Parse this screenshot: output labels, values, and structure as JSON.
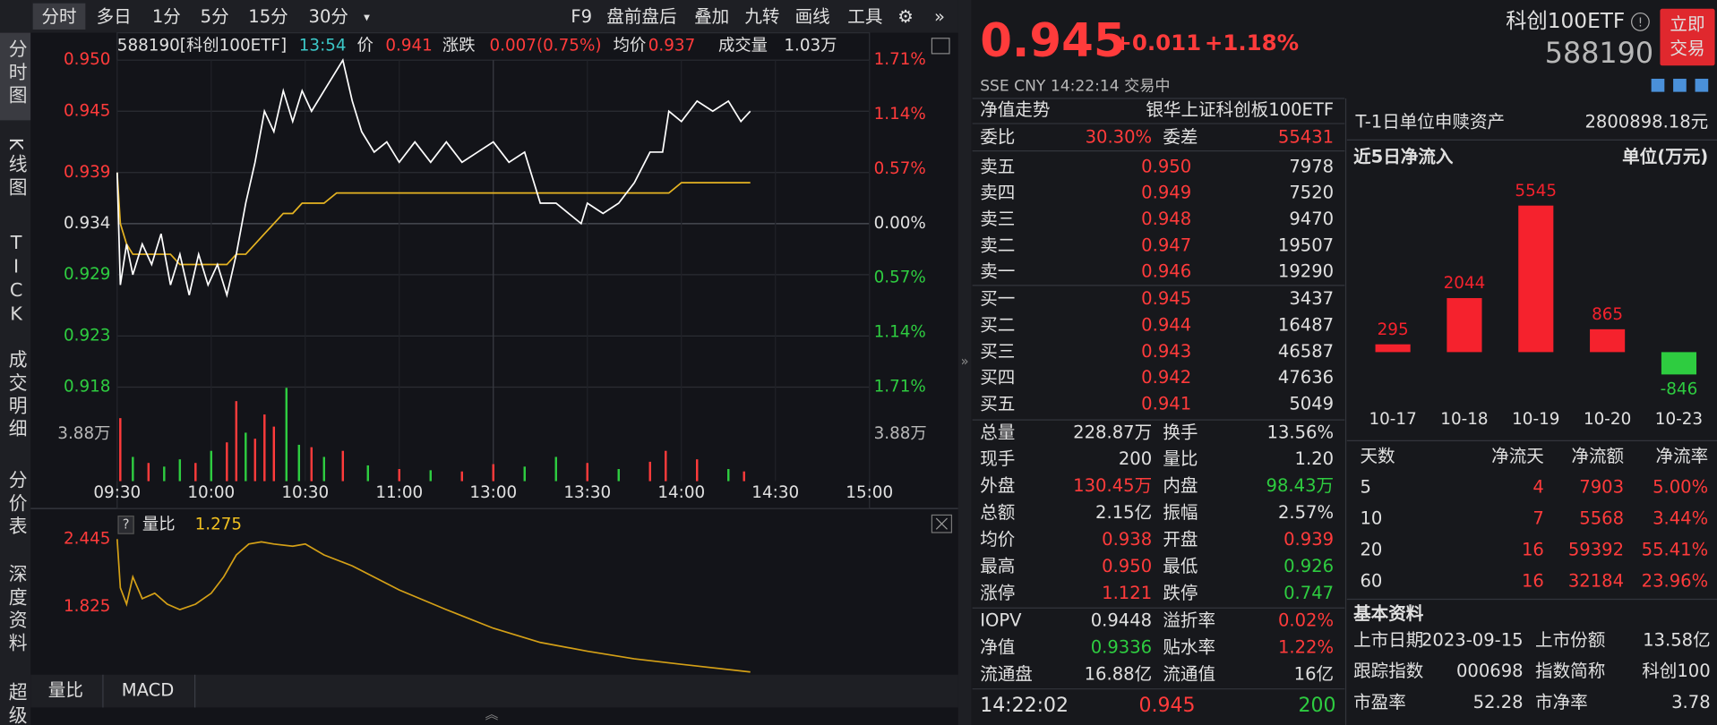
{
  "toolbar": {
    "tabs": [
      "分时",
      "多日",
      "1分",
      "5分",
      "15分",
      "30分"
    ],
    "tools": [
      "F9",
      "盘前盘后",
      "叠加",
      "九转",
      "画线",
      "工具"
    ]
  },
  "sidebar": [
    "分时图",
    "K线图",
    "TICK",
    "成交明细",
    "分价表",
    "深度资料",
    "超级"
  ],
  "info": {
    "code": "588190[科创100ETF]",
    "time": "13:54",
    "price": "0.941",
    "change_label": "涨跌",
    "change": "0.007(0.75%)",
    "avg": "0.937",
    "vol_label": "成交量",
    "vol": "1.03万",
    "ratio_value": "1.275"
  },
  "bottom_tabs": [
    "量比",
    "MACD"
  ],
  "chart_data": [
    {
      "type": "line",
      "x": [
        "09:30",
        "09:31",
        "09:33",
        "09:35",
        "09:38",
        "09:41",
        "09:44",
        "09:47",
        "09:50",
        "09:53",
        "09:56",
        "09:59",
        "10:02",
        "10:05",
        "10:08",
        "10:11",
        "10:14",
        "10:17",
        "10:20",
        "10:23",
        "10:26",
        "10:29",
        "10:32",
        "10:36",
        "10:40",
        "10:42",
        "10:45",
        "10:48",
        "10:52",
        "10:56",
        "11:00",
        "11:05",
        "11:10",
        "11:15",
        "11:20",
        "11:25",
        "13:00",
        "13:05",
        "13:10",
        "13:15",
        "13:20",
        "13:28",
        "13:30",
        "13:35",
        "13:40",
        "13:45",
        "13:50",
        "13:54",
        "13:56",
        "14:00",
        "14:05",
        "14:10",
        "14:15",
        "14:19",
        "14:22"
      ],
      "series": [
        {
          "name": "价",
          "color": "#ffffff",
          "values": [
            0.939,
            0.928,
            0.932,
            0.929,
            0.932,
            0.93,
            0.933,
            0.928,
            0.931,
            0.927,
            0.931,
            0.928,
            0.93,
            0.927,
            0.931,
            0.936,
            0.94,
            0.945,
            0.943,
            0.947,
            0.944,
            0.947,
            0.945,
            0.947,
            0.949,
            0.95,
            0.946,
            0.943,
            0.941,
            0.942,
            0.94,
            0.942,
            0.94,
            0.942,
            0.94,
            0.941,
            0.942,
            0.94,
            0.941,
            0.936,
            0.936,
            0.934,
            0.936,
            0.935,
            0.936,
            0.938,
            0.941,
            0.941,
            0.945,
            0.944,
            0.946,
            0.945,
            0.946,
            0.944,
            0.945
          ]
        },
        {
          "name": "均价",
          "color": "#e6b422",
          "values": [
            0.939,
            0.934,
            0.932,
            0.931,
            0.931,
            0.931,
            0.931,
            0.931,
            0.93,
            0.93,
            0.93,
            0.93,
            0.93,
            0.93,
            0.931,
            0.931,
            0.932,
            0.933,
            0.934,
            0.935,
            0.935,
            0.936,
            0.936,
            0.936,
            0.937,
            0.937,
            0.937,
            0.937,
            0.937,
            0.937,
            0.937,
            0.937,
            0.937,
            0.937,
            0.937,
            0.937,
            0.937,
            0.937,
            0.937,
            0.937,
            0.937,
            0.937,
            0.937,
            0.937,
            0.937,
            0.937,
            0.937,
            0.937,
            0.937,
            0.938,
            0.938,
            0.938,
            0.938,
            0.938,
            0.938
          ]
        }
      ],
      "ylim": [
        0.918,
        0.95
      ],
      "yticks": [
        {
          "value": 0.95,
          "label": "0.950"
        },
        {
          "value": 0.945,
          "label": "0.945"
        },
        {
          "value": 0.939,
          "label": "0.939"
        },
        {
          "value": 0.934,
          "label": "0.934"
        },
        {
          "value": 0.929,
          "label": "0.929"
        },
        {
          "value": 0.923,
          "label": "0.923"
        },
        {
          "value": 0.918,
          "label": "0.918"
        }
      ],
      "y2lim": [
        -1.71,
        1.71
      ],
      "y2ticks": [
        {
          "value": 1.71,
          "label": "1.71%"
        },
        {
          "value": 1.14,
          "label": "1.14%"
        },
        {
          "value": 0.57,
          "label": "0.57%"
        },
        {
          "value": 0,
          "label": "0.00%"
        },
        {
          "value": -0.57,
          "label": "0.57%"
        },
        {
          "value": -1.14,
          "label": "1.14%"
        },
        {
          "value": -1.71,
          "label": "1.71%"
        }
      ],
      "xticks": [
        "09:30",
        "10:00",
        "10:30",
        "11:00",
        "13:00",
        "13:30",
        "14:00",
        "14:30",
        "15:00"
      ]
    },
    {
      "type": "bar",
      "x": [
        "09:31",
        "09:35",
        "09:40",
        "09:45",
        "09:50",
        "09:55",
        "10:00",
        "10:05",
        "10:08",
        "10:11",
        "10:14",
        "10:17",
        "10:20",
        "10:24",
        "10:28",
        "10:32",
        "10:36",
        "10:42",
        "10:50",
        "11:00",
        "11:10",
        "11:20",
        "13:00",
        "13:10",
        "13:20",
        "13:30",
        "13:40",
        "13:50",
        "13:55",
        "14:05",
        "14:15",
        "14:20"
      ],
      "values": [
        5.2,
        2.0,
        1.5,
        1.2,
        1.8,
        1.5,
        2.5,
        3.2,
        6.6,
        4.0,
        3.5,
        5.5,
        4.5,
        7.7,
        3.0,
        2.8,
        2.0,
        2.5,
        1.3,
        1.0,
        0.9,
        0.8,
        1.4,
        1.2,
        2.0,
        1.5,
        1.0,
        1.6,
        2.5,
        1.8,
        1.0,
        0.8
      ],
      "colors": [
        "#ff3b3b",
        "#2ecc40",
        "#ff3b3b",
        "#2ecc40",
        "#2ecc40",
        "#ff3b3b",
        "#2ecc40",
        "#ff3b3b",
        "#ff3b3b",
        "#2ecc40",
        "#ff3b3b",
        "#ff3b3b",
        "#ff3b3b",
        "#2ecc40",
        "#2ecc40",
        "#ff3b3b",
        "#2ecc40",
        "#ff3b3b",
        "#2ecc40",
        "#ff3b3b",
        "#2ecc40",
        "#ff3b3b",
        "#ff3b3b",
        "#2ecc40",
        "#2ecc40",
        "#ff3b3b",
        "#2ecc40",
        "#ff3b3b",
        "#ff3b3b",
        "#ff3b3b",
        "#2ecc40",
        "#ff3b3b"
      ],
      "ylim": [
        0,
        7.76
      ],
      "yticks": [
        {
          "value": 3.88,
          "label": "3.88万"
        }
      ]
    },
    {
      "type": "line",
      "x": [
        "09:30",
        "09:31",
        "09:33",
        "09:35",
        "09:38",
        "09:42",
        "09:46",
        "09:50",
        "09:55",
        "10:00",
        "10:04",
        "10:08",
        "10:12",
        "10:16",
        "10:20",
        "10:26",
        "10:30",
        "10:36",
        "10:45",
        "11:00",
        "11:15",
        "11:30",
        "13:15",
        "13:30",
        "13:45",
        "14:00",
        "14:22"
      ],
      "series": [
        {
          "name": "量比",
          "color": "#d4a017",
          "values": [
            2.445,
            2.0,
            1.85,
            2.1,
            1.9,
            1.95,
            1.85,
            1.8,
            1.85,
            1.95,
            2.1,
            2.3,
            2.4,
            2.42,
            2.4,
            2.38,
            2.4,
            2.3,
            2.2,
            1.98,
            1.8,
            1.63,
            1.5,
            1.42,
            1.35,
            1.3,
            1.23
          ]
        }
      ],
      "ylim": [
        1.205,
        2.675
      ],
      "yticks": [
        {
          "value": 2.445,
          "label": "2.445"
        },
        {
          "value": 1.825,
          "label": "1.825"
        }
      ]
    },
    {
      "type": "bar",
      "title": "近5日净流入",
      "unit": "单位(万元)",
      "categories": [
        "10-17",
        "10-18",
        "10-19",
        "10-20",
        "10-23"
      ],
      "values": [
        295,
        2044,
        5545,
        865,
        -846
      ],
      "colors": [
        "#f5222d",
        "#f5222d",
        "#f5222d",
        "#f5222d",
        "#2ecc40"
      ]
    }
  ],
  "quote": {
    "price": "0.945",
    "change": "+0.011",
    "pct": "+1.18%",
    "market": "SSE  CNY  14:22:14  交易中",
    "name": "科创100ETF",
    "code": "588190",
    "trade": [
      "立即",
      "交易"
    ]
  },
  "nav_row": [
    "净值走势",
    "银华上证科创板100ETF"
  ],
  "ratio_row": [
    "委比",
    "30.30%",
    "委差",
    "55431"
  ],
  "asks": [
    [
      "卖五",
      "0.950",
      "7978"
    ],
    [
      "卖四",
      "0.949",
      "7520"
    ],
    [
      "卖三",
      "0.948",
      "9470"
    ],
    [
      "卖二",
      "0.947",
      "19507"
    ],
    [
      "卖一",
      "0.946",
      "19290"
    ]
  ],
  "bids": [
    [
      "买一",
      "0.945",
      "3437"
    ],
    [
      "买二",
      "0.944",
      "16487"
    ],
    [
      "买三",
      "0.943",
      "46587"
    ],
    [
      "买四",
      "0.942",
      "47636"
    ],
    [
      "买五",
      "0.941",
      "5049"
    ]
  ],
  "stats": [
    [
      "总量",
      "228.87万",
      "换手",
      "13.56%"
    ],
    [
      "现手",
      "200",
      "量比",
      "1.20"
    ],
    [
      "外盘",
      "130.45万",
      "内盘",
      "98.43万"
    ],
    [
      "总额",
      "2.15亿",
      "振幅",
      "2.57%"
    ],
    [
      "均价",
      "0.938",
      "开盘",
      "0.939"
    ],
    [
      "最高",
      "0.950",
      "最低",
      "0.926"
    ],
    [
      "涨停",
      "1.121",
      "跌停",
      "0.747"
    ]
  ],
  "stats2": [
    [
      "IOPV",
      "0.9448",
      "溢折率",
      "0.02%"
    ],
    [
      "净值",
      "0.9336",
      "贴水率",
      "1.22%"
    ],
    [
      "流通盘",
      "16.88亿",
      "流通值",
      "16亿"
    ]
  ],
  "tick": [
    "14:22:02",
    "0.945",
    "200"
  ],
  "redemption": [
    "T-1日单位申赎资产",
    "2800898.18元"
  ],
  "flow_table": {
    "header": [
      "天数",
      "净流天",
      "净流额",
      "净流率"
    ],
    "rows": [
      [
        "5",
        "4",
        "7903",
        "5.00%"
      ],
      [
        "10",
        "7",
        "5568",
        "3.44%"
      ],
      [
        "20",
        "16",
        "59392",
        "55.41%"
      ],
      [
        "60",
        "16",
        "32184",
        "23.96%"
      ]
    ]
  },
  "basic": {
    "title": "基本资料",
    "rows": [
      [
        "上市日期",
        "2023-09-15",
        "上市份额",
        "13.58亿"
      ],
      [
        "跟踪指数",
        "000698",
        "指数简称",
        "科创100"
      ],
      [
        "市盈率",
        "52.28",
        "市净率",
        "3.78"
      ]
    ]
  }
}
